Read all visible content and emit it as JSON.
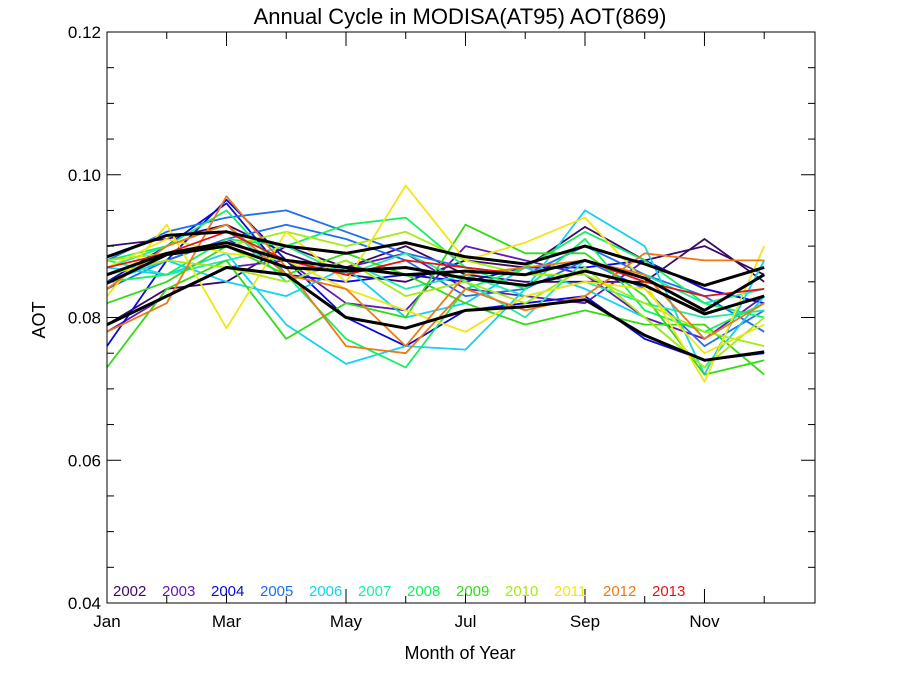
{
  "chart_data": {
    "type": "line",
    "title": "Annual Cycle in MODISA(AT95) AOT(869)",
    "xlabel": "Month of Year",
    "ylabel": "AOT",
    "xlim": [
      1,
      12.85
    ],
    "ylim": [
      0.04,
      0.12
    ],
    "x_ticks": [
      {
        "value": 1,
        "label": "Jan"
      },
      {
        "value": 3,
        "label": "Mar"
      },
      {
        "value": 5,
        "label": "May"
      },
      {
        "value": 7,
        "label": "Jul"
      },
      {
        "value": 9,
        "label": "Sep"
      },
      {
        "value": 11,
        "label": "Nov"
      }
    ],
    "y_ticks": [
      {
        "value": 0.04,
        "label": "0.04"
      },
      {
        "value": 0.06,
        "label": "0.06"
      },
      {
        "value": 0.08,
        "label": "0.08"
      },
      {
        "value": 0.1,
        "label": "0.10"
      },
      {
        "value": 0.12,
        "label": "0.12"
      }
    ],
    "y_minor_step": 0.005,
    "grid": false,
    "legend_position": "bottom-left, inside plot",
    "x": [
      1,
      2,
      3,
      4,
      5,
      6,
      7,
      8,
      9,
      10,
      11,
      12
    ],
    "series": [
      {
        "name": "2002",
        "color": "#3c0a64",
        "values": [
          0.09,
          0.091,
          0.093,
          0.089,
          0.086,
          0.085,
          0.088,
          0.087,
          0.0927,
          0.088,
          0.09,
          0.086
        ]
      },
      {
        "name": "",
        "color": "#3c0a64",
        "values": [
          0.079,
          0.084,
          0.085,
          0.09,
          0.087,
          0.09,
          0.086,
          0.085,
          0.085,
          0.085,
          0.091,
          0.085
        ]
      },
      {
        "name": "2003",
        "color": "#6419b4",
        "values": [
          0.086,
          0.088,
          0.091,
          0.087,
          0.087,
          0.089,
          0.084,
          0.083,
          0.082,
          0.088,
          0.084,
          0.082
        ]
      },
      {
        "name": "",
        "color": "#6419b4",
        "values": [
          0.078,
          0.083,
          0.087,
          0.088,
          0.082,
          0.081,
          0.09,
          0.088,
          0.086,
          0.08,
          0.077,
          0.083
        ]
      },
      {
        "name": "2004",
        "color": "#0a0adc",
        "values": [
          0.076,
          0.088,
          0.0965,
          0.088,
          0.08,
          0.076,
          0.081,
          0.082,
          0.083,
          0.077,
          0.074,
          0.075
        ]
      },
      {
        "name": "",
        "color": "#0a0adc",
        "values": [
          0.085,
          0.09,
          0.096,
          0.086,
          0.085,
          0.086,
          0.085,
          0.087,
          0.087,
          0.088,
          0.084,
          0.082
        ]
      },
      {
        "name": "2005",
        "color": "#1e6ef0",
        "values": [
          0.088,
          0.092,
          0.094,
          0.095,
          0.092,
          0.089,
          0.087,
          0.086,
          0.09,
          0.086,
          0.083,
          0.078
        ]
      },
      {
        "name": "",
        "color": "#1e6ef0",
        "values": [
          0.084,
          0.088,
          0.091,
          0.093,
          0.091,
          0.088,
          0.083,
          0.084,
          0.088,
          0.084,
          0.076,
          0.081
        ]
      },
      {
        "name": "2006",
        "color": "#14d2f0",
        "values": [
          0.087,
          0.086,
          0.089,
          0.079,
          0.0735,
          0.076,
          0.0755,
          0.084,
          0.095,
          0.09,
          0.072,
          0.088
        ]
      },
      {
        "name": "",
        "color": "#14d2f0",
        "values": [
          0.085,
          0.088,
          0.085,
          0.083,
          0.087,
          0.08,
          0.082,
          0.087,
          0.084,
          0.08,
          0.073,
          0.083
        ]
      },
      {
        "name": "2007",
        "color": "#1eebaa",
        "values": [
          0.088,
          0.086,
          0.088,
          0.09,
          0.086,
          0.089,
          0.085,
          0.08,
          0.088,
          0.086,
          0.082,
          0.084
        ]
      },
      {
        "name": "",
        "color": "#1eebaa",
        "values": [
          0.087,
          0.09,
          0.093,
          0.085,
          0.088,
          0.084,
          0.086,
          0.083,
          0.085,
          0.082,
          0.08,
          0.081
        ]
      },
      {
        "name": "2008",
        "color": "#14f064",
        "values": [
          0.085,
          0.086,
          0.091,
          0.09,
          0.093,
          0.094,
          0.087,
          0.084,
          0.091,
          0.081,
          0.078,
          0.082
        ]
      },
      {
        "name": "",
        "color": "#14f064",
        "values": [
          0.088,
          0.09,
          0.095,
          0.086,
          0.077,
          0.073,
          0.084,
          0.087,
          0.092,
          0.088,
          0.082,
          0.08
        ]
      },
      {
        "name": "2009",
        "color": "#32dc14",
        "values": [
          0.073,
          0.084,
          0.088,
          0.077,
          0.082,
          0.08,
          0.093,
          0.089,
          0.089,
          0.083,
          0.072,
          0.074
        ]
      },
      {
        "name": "",
        "color": "#32dc14",
        "values": [
          0.082,
          0.085,
          0.09,
          0.086,
          0.089,
          0.086,
          0.082,
          0.079,
          0.081,
          0.079,
          0.079,
          0.072
        ]
      },
      {
        "name": "2010",
        "color": "#a5ea14",
        "values": [
          0.088,
          0.089,
          0.09,
          0.092,
          0.09,
          0.092,
          0.088,
          0.086,
          0.086,
          0.082,
          0.078,
          0.076
        ]
      },
      {
        "name": "",
        "color": "#a5ea14",
        "values": [
          0.086,
          0.088,
          0.087,
          0.085,
          0.088,
          0.083,
          0.085,
          0.082,
          0.087,
          0.08,
          0.073,
          0.08
        ]
      },
      {
        "name": "2011",
        "color": "#f0e614",
        "values": [
          0.083,
          0.093,
          0.0785,
          0.092,
          0.085,
          0.0985,
          0.088,
          0.0905,
          0.094,
          0.085,
          0.071,
          0.09
        ]
      },
      {
        "name": "",
        "color": "#f0e614",
        "values": [
          0.087,
          0.091,
          0.089,
          0.088,
          0.084,
          0.081,
          0.078,
          0.083,
          0.085,
          0.084,
          0.075,
          0.079
        ]
      },
      {
        "name": "2012",
        "color": "#f07814",
        "values": [
          0.078,
          0.082,
          0.097,
          0.087,
          0.076,
          0.075,
          0.084,
          0.081,
          0.083,
          0.089,
          0.088,
          0.088
        ]
      },
      {
        "name": "",
        "color": "#f07814",
        "values": [
          0.084,
          0.09,
          0.093,
          0.086,
          0.084,
          0.076,
          0.086,
          0.087,
          0.088,
          0.086,
          0.077,
          0.082
        ]
      },
      {
        "name": "2013",
        "color": "#e61414",
        "values": [
          0.087,
          0.089,
          0.092,
          0.088,
          0.086,
          0.088,
          0.087,
          0.086,
          0.088,
          0.085,
          0.083,
          0.084
        ]
      },
      {
        "name": "",
        "color": "#000000",
        "values": [
          0.0885,
          0.0915,
          0.092,
          0.09,
          0.089,
          0.0905,
          0.0885,
          0.0875,
          0.09,
          0.0875,
          0.0845,
          0.087
        ]
      },
      {
        "name": "",
        "color": "#000000",
        "values": [
          0.086,
          0.089,
          0.0905,
          0.088,
          0.087,
          0.086,
          0.0865,
          0.086,
          0.088,
          0.0855,
          0.081,
          0.086
        ]
      },
      {
        "name": "",
        "color": "#000000",
        "values": [
          0.0848,
          0.0888,
          0.09,
          0.087,
          0.0865,
          0.087,
          0.0855,
          0.0845,
          0.0865,
          0.0845,
          0.0805,
          0.083
        ]
      },
      {
        "name": "",
        "color": "#000000",
        "values": [
          0.079,
          0.083,
          0.087,
          0.086,
          0.08,
          0.0785,
          0.081,
          0.0815,
          0.0825,
          0.0775,
          0.074,
          0.0752
        ]
      }
    ]
  }
}
